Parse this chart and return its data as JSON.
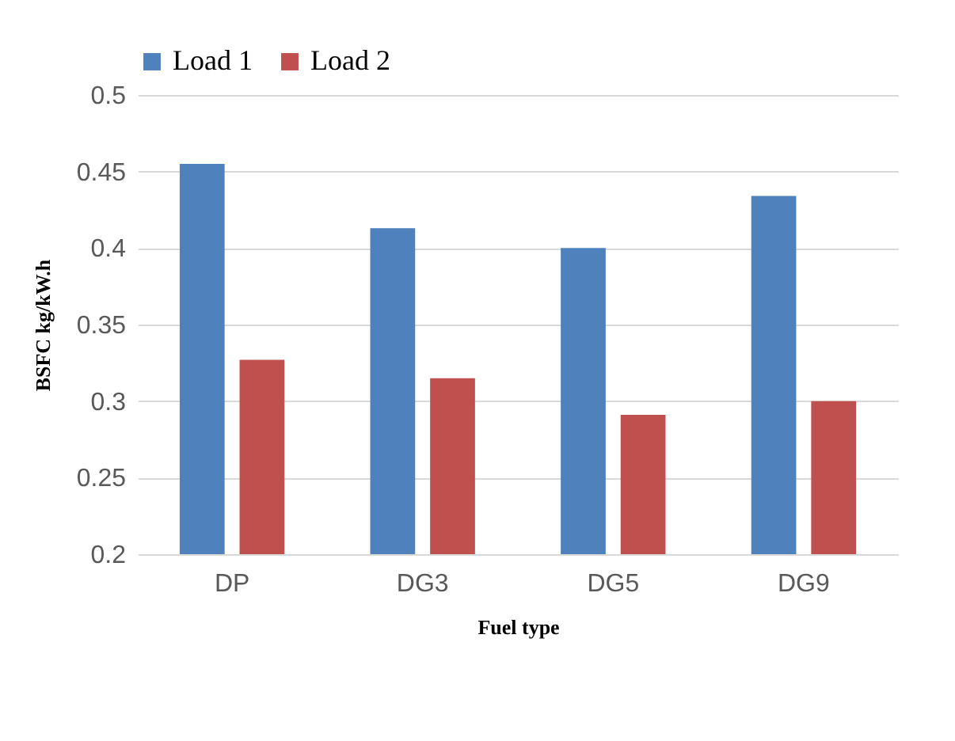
{
  "chart_data": {
    "type": "bar",
    "xlabel": "Fuel type",
    "ylabel": "BSFC  kg/kW.h",
    "categories": [
      "DP",
      "DG3",
      "DG5",
      "DG9"
    ],
    "series": [
      {
        "name": "Load 1",
        "color": "#4f81bd",
        "values": [
          0.455,
          0.413,
          0.4,
          0.434
        ]
      },
      {
        "name": "Load 2",
        "color": "#c0504d",
        "values": [
          0.327,
          0.315,
          0.291,
          0.3
        ]
      }
    ],
    "ylim": [
      0.2,
      0.5
    ],
    "yticks": [
      0.2,
      0.25,
      0.3,
      0.35,
      0.4,
      0.45,
      0.5
    ],
    "grid": "y",
    "legend": "top"
  }
}
